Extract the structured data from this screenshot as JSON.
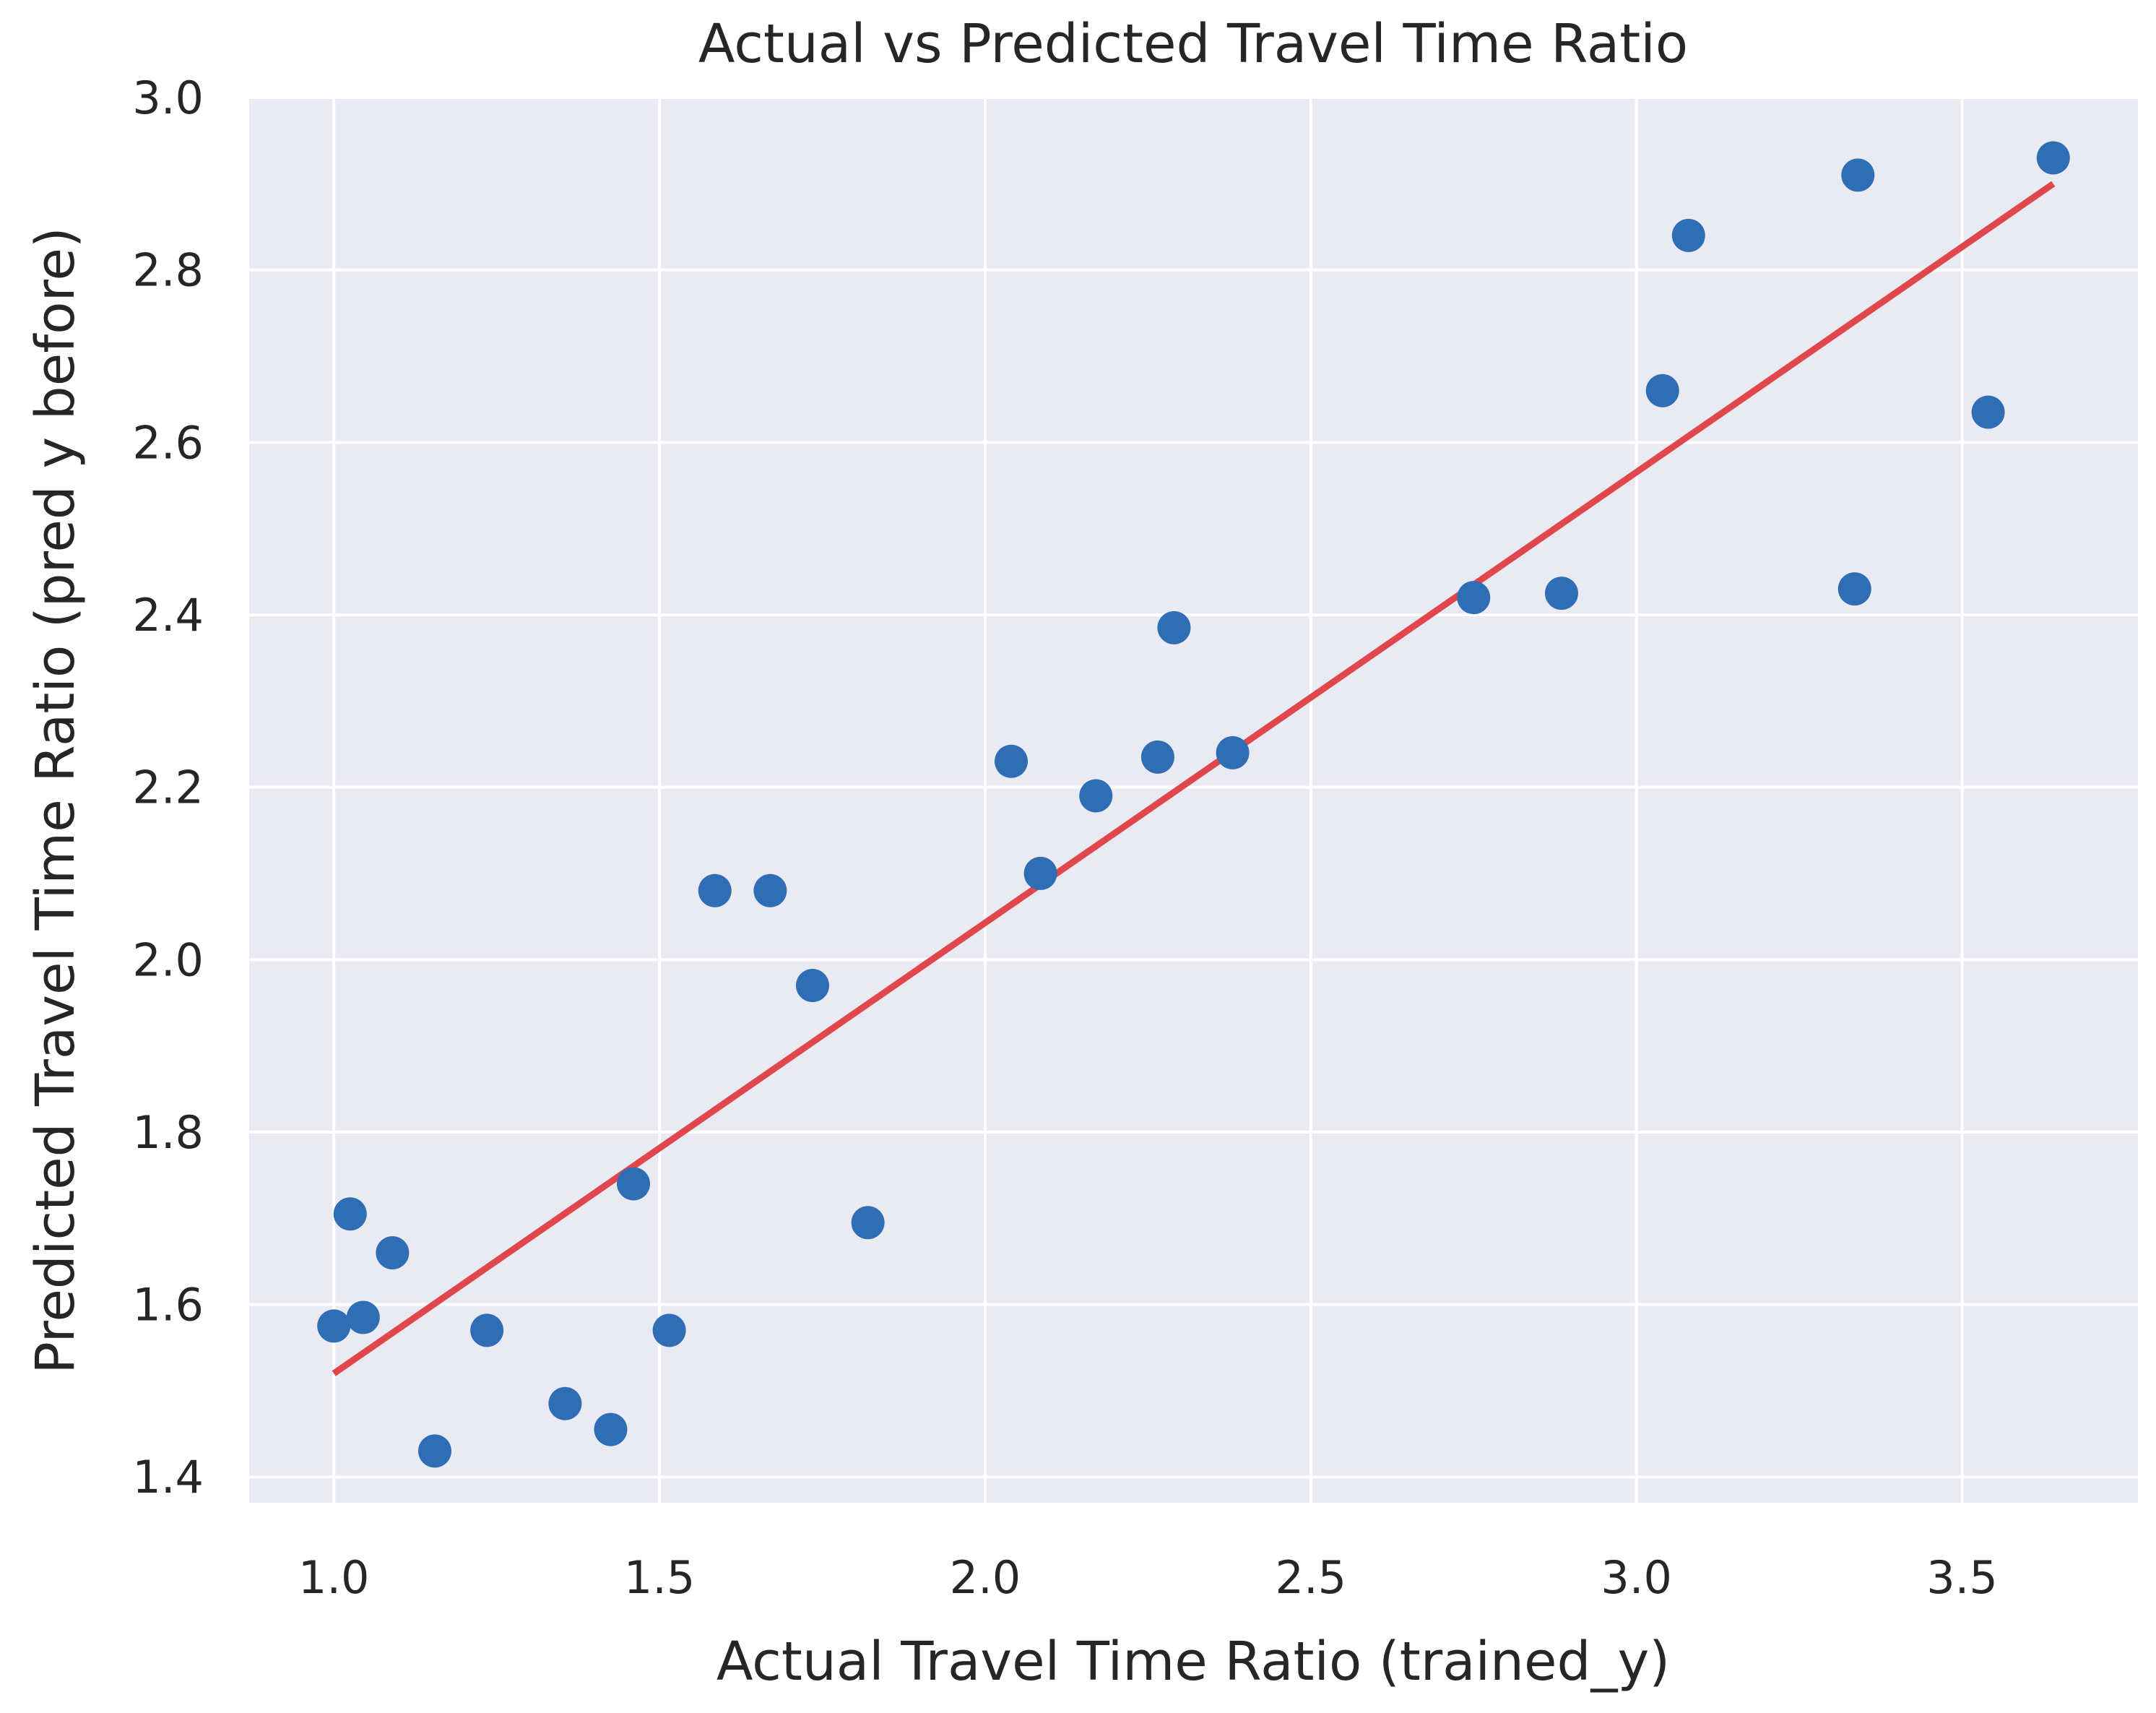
{
  "chart_data": {
    "type": "scatter",
    "title": "Actual vs Predicted Travel Time Ratio",
    "xlabel": "Actual Travel Time Ratio (trained_y)",
    "ylabel": "Predicted Travel Time Ratio (pred y before)",
    "xlim": [
      0.87,
      3.77
    ],
    "ylim": [
      1.37,
      3.0
    ],
    "x_ticks": [
      1.0,
      1.5,
      2.0,
      2.5,
      3.0,
      3.5
    ],
    "y_ticks": [
      1.4,
      1.6,
      1.8,
      2.0,
      2.2,
      2.4,
      2.6,
      2.8,
      3.0
    ],
    "x_tick_labels": [
      "1.0",
      "1.5",
      "2.0",
      "2.5",
      "3.0",
      "3.5"
    ],
    "y_tick_labels": [
      "1.4",
      "1.6",
      "1.8",
      "2.0",
      "2.2",
      "2.4",
      "2.6",
      "2.8",
      "3.0"
    ],
    "grid": true,
    "background_color": "#eaeaf2",
    "point_color": "#2f6eb5",
    "line_color": "#e0474c",
    "series": [
      {
        "points": [
          [
            1.0,
            1.575
          ],
          [
            1.025,
            1.705
          ],
          [
            1.045,
            1.585
          ],
          [
            1.09,
            1.66
          ],
          [
            1.155,
            1.43
          ],
          [
            1.235,
            1.57
          ],
          [
            1.355,
            1.485
          ],
          [
            1.425,
            1.455
          ],
          [
            1.46,
            1.74
          ],
          [
            1.515,
            1.57
          ],
          [
            1.585,
            2.08
          ],
          [
            1.67,
            2.08
          ],
          [
            1.735,
            1.97
          ],
          [
            1.82,
            1.695
          ],
          [
            2.04,
            2.23
          ],
          [
            2.085,
            2.1
          ],
          [
            2.17,
            2.19
          ],
          [
            2.265,
            2.235
          ],
          [
            2.29,
            2.385
          ],
          [
            2.38,
            2.24
          ],
          [
            2.75,
            2.42
          ],
          [
            2.885,
            2.425
          ],
          [
            3.04,
            2.66
          ],
          [
            3.08,
            2.84
          ],
          [
            3.335,
            2.43
          ],
          [
            3.34,
            2.91
          ],
          [
            3.54,
            2.635
          ],
          [
            3.64,
            2.93
          ]
        ]
      }
    ],
    "fit_line": {
      "x": [
        1.0,
        3.64
      ],
      "y": [
        1.52,
        2.9
      ]
    }
  }
}
